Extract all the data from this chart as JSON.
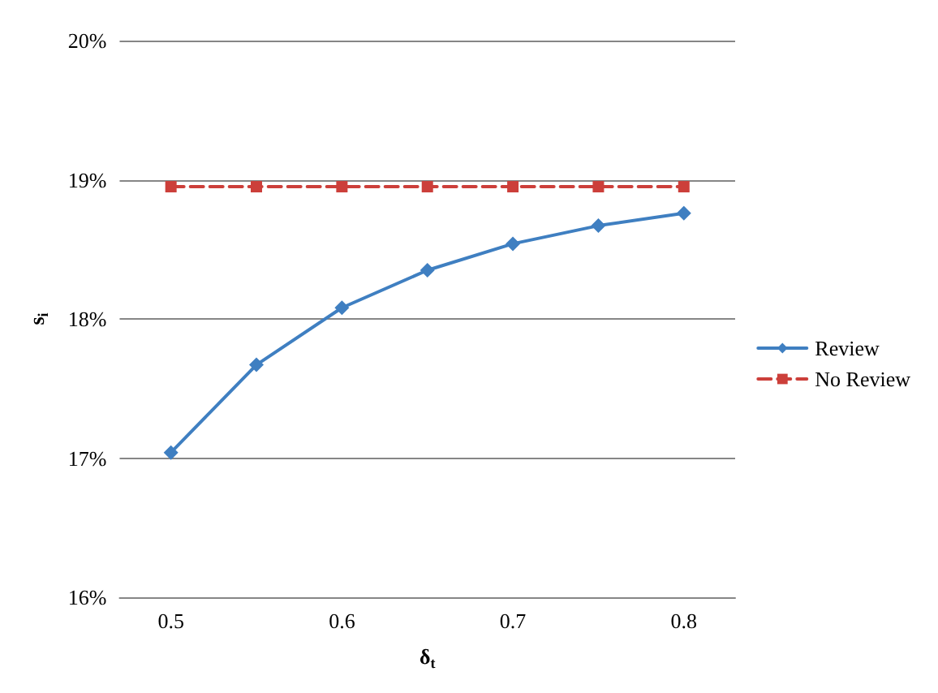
{
  "chart_data": {
    "type": "line",
    "xlabel": "δ$_{t}$",
    "ylabel": "s$_{i}$",
    "x": [
      0.5,
      0.55,
      0.6,
      0.65,
      0.7,
      0.75,
      0.8
    ],
    "series": [
      {
        "name": "Review",
        "color": "#3f7fc1",
        "values": [
          17.04,
          17.67,
          18.08,
          18.35,
          18.54,
          18.67,
          18.76
        ],
        "marker": "diamond",
        "line_style": "solid"
      },
      {
        "name": "No Review",
        "color": "#cc3f3a",
        "values": [
          18.95,
          18.95,
          18.95,
          18.95,
          18.95,
          18.95,
          18.95
        ],
        "marker": "square",
        "line_style": "dashed"
      }
    ],
    "xlim": [
      0.47,
      0.83
    ],
    "xticks": [
      0.5,
      0.6,
      0.7,
      0.8
    ],
    "ylim": [
      16,
      20
    ],
    "yticks": [
      {
        "value": 16,
        "label": "16%"
      },
      {
        "value": 17,
        "label": "17%"
      },
      {
        "value": 18,
        "label": "18%"
      },
      {
        "value": 19,
        "label": "19%"
      },
      {
        "value": 20,
        "label": "20%"
      }
    ],
    "grid": "y",
    "legend": "right"
  }
}
